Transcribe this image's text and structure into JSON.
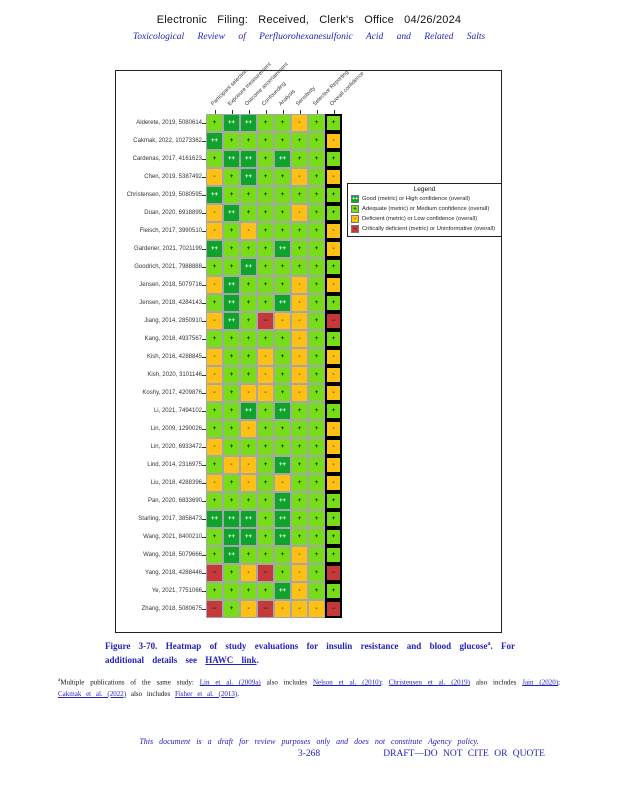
{
  "header": {
    "line1": "Electronic Filing: Received, Clerk's Office 04/26/2024",
    "line2": "Toxicological Review of Perfluorohexanesulfonic Acid and Related Salts"
  },
  "chart_data": {
    "type": "heatmap",
    "legend_title": "Legend",
    "columns": [
      "Participant selection",
      "Exposure measurement",
      "Outcome ascertainment",
      "Confounding",
      "Analysis",
      "Sensitivity",
      "Selective Reporting",
      "Overall confidence"
    ],
    "rating_scale": {
      "order": [
        "++",
        "+",
        "-",
        "--"
      ],
      "++": {
        "label": "Good (metric) or High confidence (overall)",
        "color": "#0fa32c",
        "text_color": "#ffffff"
      },
      "+": {
        "label": "Adequate (metric) or Medium confidence (overall)",
        "color": "#77dd17",
        "text_color": "#1f1f1f"
      },
      "-": {
        "label": "Deficient (metric) or Low confidence (overall)",
        "color": "#fdc013",
        "text_color": "#1f1f1f"
      },
      "--": {
        "label": "Critically deficient (metric) or Uninformative (overall)",
        "color": "#c5393b",
        "text_color": "#1f1f1f"
      }
    },
    "rows": [
      {
        "label": "Alderete, 2019, 5080614",
        "ratings": [
          "+",
          "++",
          "++",
          "+",
          "+",
          "-",
          "+",
          "+"
        ]
      },
      {
        "label": "Cakmak, 2022, 10273362",
        "ratings": [
          "++",
          "+",
          "+",
          "+",
          "+",
          "+",
          "+",
          "-"
        ]
      },
      {
        "label": "Cardenas, 2017, 4161623",
        "ratings": [
          "+",
          "++",
          "++",
          "+",
          "++",
          "+",
          "+",
          "+"
        ]
      },
      {
        "label": "Chen, 2019, 5387492",
        "ratings": [
          "-",
          "+",
          "++",
          "+",
          "+",
          "-",
          "+",
          "-"
        ]
      },
      {
        "label": "Christensen, 2019, 5080595",
        "ratings": [
          "++",
          "+",
          "+",
          "+",
          "+",
          "+",
          "+",
          "+"
        ]
      },
      {
        "label": "Duan, 2020, 6918899",
        "ratings": [
          "-",
          "++",
          "+",
          "+",
          "+",
          "-",
          "+",
          "+"
        ]
      },
      {
        "label": "Fleisch, 2017, 3990510",
        "ratings": [
          "-",
          "+",
          "-",
          "+",
          "+",
          "+",
          "+",
          "-"
        ]
      },
      {
        "label": "Gardener, 2021, 7021199",
        "ratings": [
          "++",
          "+",
          "+",
          "+",
          "++",
          "+",
          "+",
          "-"
        ]
      },
      {
        "label": "Goodrich, 2021, 7988888",
        "ratings": [
          "+",
          "+",
          "++",
          "+",
          "+",
          "+",
          "+",
          "+"
        ]
      },
      {
        "label": "Jensen, 2018, 5079716",
        "ratings": [
          "-",
          "++",
          "+",
          "+",
          "+",
          "-",
          "+",
          "-"
        ]
      },
      {
        "label": "Jensen, 2018, 4284143",
        "ratings": [
          "+",
          "++",
          "+",
          "+",
          "++",
          "-",
          "+",
          "+"
        ]
      },
      {
        "label": "Jiang, 2014, 2850910",
        "ratings": [
          "-",
          "++",
          "+",
          "--",
          "-",
          "-",
          "+",
          "--"
        ]
      },
      {
        "label": "Kang, 2018, 4937567",
        "ratings": [
          "+",
          "+",
          "+",
          "+",
          "+",
          "-",
          "+",
          "+"
        ]
      },
      {
        "label": "Kish, 2016, 4288845",
        "ratings": [
          "-",
          "+",
          "+",
          "-",
          "+",
          "-",
          "+",
          "-"
        ]
      },
      {
        "label": "Kish, 2020, 3101146",
        "ratings": [
          "-",
          "+",
          "+",
          "-",
          "+",
          "-",
          "+",
          "-"
        ]
      },
      {
        "label": "Koshy, 2017, 4209876",
        "ratings": [
          "-",
          "+",
          "-",
          "-",
          "+",
          "-",
          "+",
          "-"
        ]
      },
      {
        "label": "Li, 2021, 7494102",
        "ratings": [
          "+",
          "+",
          "++",
          "+",
          "++",
          "+",
          "+",
          "+"
        ]
      },
      {
        "label": "Lin, 2009, 1290026",
        "ratings": [
          "+",
          "+",
          "-",
          "+",
          "+",
          "+",
          "+",
          "-"
        ]
      },
      {
        "label": "Lin, 2020, 6933472",
        "ratings": [
          "-",
          "+",
          "+",
          "+",
          "+",
          "+",
          "+",
          "-"
        ]
      },
      {
        "label": "Lind, 2014, 2316975",
        "ratings": [
          "+",
          "-",
          "-",
          "+",
          "++",
          "+",
          "+",
          "-"
        ]
      },
      {
        "label": "Liu, 2018, 4288396",
        "ratings": [
          "-",
          "+",
          "-",
          "+",
          "-",
          "+",
          "+",
          "-"
        ]
      },
      {
        "label": "Pan, 2020, 6833690",
        "ratings": [
          "+",
          "+",
          "+",
          "+",
          "++",
          "+",
          "+",
          "+"
        ]
      },
      {
        "label": "Starling, 2017, 3858473",
        "ratings": [
          "++",
          "++",
          "++",
          "+",
          "++",
          "+",
          "+",
          "+"
        ]
      },
      {
        "label": "Wang, 2021, 8400210",
        "ratings": [
          "+",
          "++",
          "++",
          "+",
          "++",
          "+",
          "+",
          "+"
        ]
      },
      {
        "label": "Wang, 2018, 5079666",
        "ratings": [
          "+",
          "++",
          "+",
          "+",
          "+",
          "-",
          "+",
          "+"
        ]
      },
      {
        "label": "Yang, 2018, 4288446",
        "ratings": [
          "--",
          "+",
          "-",
          "--",
          "+",
          "-",
          "+",
          "--"
        ]
      },
      {
        "label": "Ye, 2021, 7751066",
        "ratings": [
          "+",
          "+",
          "+",
          "+",
          "++",
          "-",
          "+",
          "+"
        ]
      },
      {
        "label": "Zhang, 2018, 5080675",
        "ratings": [
          "--",
          "+",
          "-",
          "--",
          "-",
          "-",
          "-",
          "--"
        ]
      }
    ]
  },
  "caption": {
    "figure_label": "Figure 3-70.",
    "body": "Heatmap of study evaluations for insulin resistance and blood glucose",
    "marker": "a",
    "body2": ". For additional details see",
    "link": "HAWC link",
    "period": "."
  },
  "footnote": {
    "marker": "a",
    "segments": [
      {
        "text": "Multiple publications of the same study: ",
        "link": false
      },
      {
        "text": "Lin et al. (2009a)",
        "link": true
      },
      {
        "text": " also includes ",
        "link": false
      },
      {
        "text": "Nelson et al. (2010)",
        "link": true
      },
      {
        "text": "; ",
        "link": false
      },
      {
        "text": "Christensen et al. (2019)",
        "link": true
      },
      {
        "text": " also includes ",
        "link": false
      },
      {
        "text": "Jain (2020)",
        "link": true
      },
      {
        "text": "; ",
        "link": false
      },
      {
        "text": "Cakmak et al. (2022)",
        "link": true
      },
      {
        "text": " also includes ",
        "link": false
      },
      {
        "text": "Fisher et al. (2013)",
        "link": true
      },
      {
        "text": ".",
        "link": false
      }
    ]
  },
  "footer": {
    "disclaimer": "This document is a draft for review purposes only and does not constitute Agency policy.",
    "page_number": "3-268",
    "draft_notice": "DRAFT—DO NOT CITE OR QUOTE"
  }
}
